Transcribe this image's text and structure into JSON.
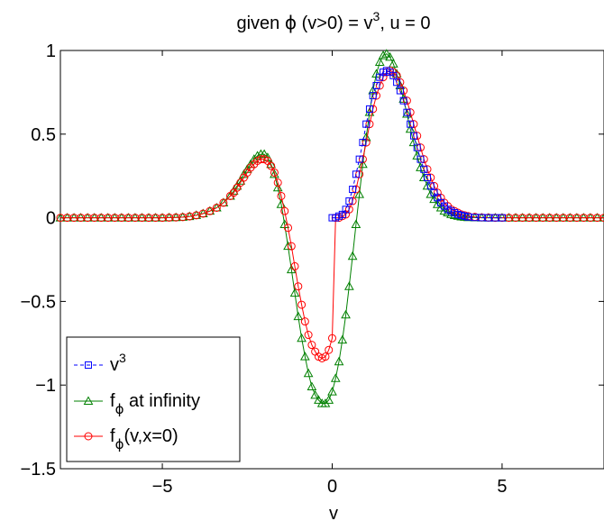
{
  "chart_data": {
    "type": "line",
    "title": {
      "prefix": "given ",
      "phi": "ϕ",
      "middle": " (v>0) = v",
      "sup": "3",
      "suffix": ", u = 0"
    },
    "xlabel": "v",
    "ylabel": "",
    "xlim": [
      -8,
      8
    ],
    "ylim": [
      -1.5,
      1
    ],
    "xticks": [
      -5,
      0,
      5
    ],
    "xtick_labels": [
      "−5",
      "0",
      "5"
    ],
    "yticks": [
      -1.5,
      -1,
      -0.5,
      0,
      0.5,
      1
    ],
    "ytick_labels": [
      "−1.5",
      "−1",
      "−0.5",
      "0",
      "0.5",
      "1"
    ],
    "grid": false,
    "legend_position": "bottom-left",
    "series": [
      {
        "name": "v3",
        "legend": {
          "base": "v",
          "sup": "3",
          "sub": "",
          "rest": ""
        },
        "color": "#0000ff",
        "marker": "square",
        "linestyle": "dashed",
        "x": [
          0.0,
          0.1,
          0.2,
          0.3,
          0.4,
          0.5,
          0.6,
          0.7,
          0.8,
          0.9,
          1.0,
          1.1,
          1.2,
          1.3,
          1.4,
          1.5,
          1.6,
          1.7,
          1.8,
          1.9,
          2.0,
          2.1,
          2.2,
          2.3,
          2.4,
          2.5,
          2.6,
          2.7,
          2.8,
          2.9,
          3.0,
          3.1,
          3.2,
          3.3,
          3.4,
          3.5,
          3.6,
          3.7,
          3.8,
          3.9,
          4.0,
          4.2,
          4.4,
          4.6,
          4.8,
          5.0
        ],
        "y": [
          0.0,
          0.0,
          0.01,
          0.02,
          0.05,
          0.1,
          0.17,
          0.26,
          0.35,
          0.45,
          0.56,
          0.65,
          0.73,
          0.79,
          0.84,
          0.87,
          0.88,
          0.87,
          0.85,
          0.81,
          0.76,
          0.7,
          0.63,
          0.56,
          0.49,
          0.42,
          0.35,
          0.29,
          0.24,
          0.19,
          0.15,
          0.12,
          0.09,
          0.07,
          0.05,
          0.04,
          0.03,
          0.02,
          0.015,
          0.01,
          0.005,
          0.002,
          0.001,
          0.0,
          0.0,
          0.0
        ]
      },
      {
        "name": "f_phi at infinity",
        "legend": {
          "base": "f",
          "sup": "",
          "sub": "ϕ",
          "rest": " at infinity"
        },
        "color": "#008000",
        "marker": "triangle",
        "linestyle": "solid",
        "x": [
          -8.0,
          -7.8,
          -7.6,
          -7.4,
          -7.2,
          -7.0,
          -6.8,
          -6.6,
          -6.4,
          -6.2,
          -6.0,
          -5.8,
          -5.6,
          -5.4,
          -5.2,
          -5.0,
          -4.8,
          -4.6,
          -4.4,
          -4.2,
          -4.0,
          -3.8,
          -3.6,
          -3.4,
          -3.2,
          -3.0,
          -2.9,
          -2.8,
          -2.7,
          -2.6,
          -2.5,
          -2.4,
          -2.3,
          -2.2,
          -2.1,
          -2.0,
          -1.9,
          -1.8,
          -1.7,
          -1.6,
          -1.5,
          -1.4,
          -1.3,
          -1.2,
          -1.1,
          -1.0,
          -0.9,
          -0.8,
          -0.7,
          -0.6,
          -0.5,
          -0.4,
          -0.3,
          -0.2,
          -0.1,
          0.0,
          0.1,
          0.2,
          0.3,
          0.4,
          0.5,
          0.6,
          0.7,
          0.8,
          0.9,
          1.0,
          1.1,
          1.2,
          1.3,
          1.4,
          1.5,
          1.6,
          1.7,
          1.8,
          1.9,
          2.0,
          2.1,
          2.2,
          2.3,
          2.4,
          2.5,
          2.6,
          2.7,
          2.8,
          2.9,
          3.0,
          3.1,
          3.2,
          3.3,
          3.4,
          3.5,
          3.6,
          3.7,
          3.8,
          3.9,
          4.0,
          4.2,
          4.4,
          4.6,
          4.8,
          5.0,
          5.2,
          5.4,
          5.6,
          5.8,
          6.0,
          6.2,
          6.4,
          6.6,
          6.8,
          7.0,
          7.2,
          7.4,
          7.6,
          7.8,
          8.0
        ],
        "y": [
          0.0,
          0.0,
          0.0,
          0.0,
          0.0,
          0.0,
          0.0,
          0.0,
          0.0,
          0.0,
          0.0,
          0.0,
          0.0,
          0.0,
          0.0,
          0.0,
          0.001,
          0.002,
          0.004,
          0.008,
          0.015,
          0.025,
          0.04,
          0.06,
          0.09,
          0.13,
          0.16,
          0.19,
          0.22,
          0.26,
          0.29,
          0.32,
          0.35,
          0.37,
          0.38,
          0.38,
          0.36,
          0.32,
          0.26,
          0.18,
          0.08,
          -0.04,
          -0.17,
          -0.31,
          -0.45,
          -0.59,
          -0.72,
          -0.83,
          -0.93,
          -1.01,
          -1.06,
          -1.09,
          -1.11,
          -1.11,
          -1.09,
          -1.04,
          -0.96,
          -0.86,
          -0.73,
          -0.58,
          -0.41,
          -0.23,
          -0.04,
          0.14,
          0.32,
          0.48,
          0.63,
          0.76,
          0.86,
          0.93,
          0.97,
          0.98,
          0.96,
          0.92,
          0.86,
          0.79,
          0.71,
          0.62,
          0.53,
          0.45,
          0.37,
          0.3,
          0.24,
          0.19,
          0.14,
          0.11,
          0.08,
          0.06,
          0.04,
          0.03,
          0.02,
          0.014,
          0.01,
          0.006,
          0.004,
          0.002,
          0.001,
          0.0,
          0.0,
          0.0,
          0.0,
          0.0,
          0.0,
          0.0,
          0.0,
          0.0,
          0.0,
          0.0,
          0.0,
          0.0,
          0.0,
          0.0,
          0.0,
          0.0,
          0.0,
          0.0
        ]
      },
      {
        "name": "f_phi(v,x=0)",
        "legend": {
          "base": "f",
          "sup": "",
          "sub": "ϕ",
          "rest": "(v,x=0)"
        },
        "color": "#ff0000",
        "marker": "circle",
        "linestyle": "solid",
        "x": [
          -8.0,
          -7.8,
          -7.6,
          -7.4,
          -7.2,
          -7.0,
          -6.8,
          -6.6,
          -6.4,
          -6.2,
          -6.0,
          -5.8,
          -5.6,
          -5.4,
          -5.2,
          -5.0,
          -4.8,
          -4.6,
          -4.4,
          -4.2,
          -4.0,
          -3.8,
          -3.6,
          -3.4,
          -3.2,
          -3.0,
          -2.9,
          -2.8,
          -2.7,
          -2.6,
          -2.5,
          -2.4,
          -2.3,
          -2.2,
          -2.1,
          -2.0,
          -1.9,
          -1.8,
          -1.7,
          -1.6,
          -1.5,
          -1.4,
          -1.3,
          -1.2,
          -1.1,
          -1.0,
          -0.9,
          -0.8,
          -0.7,
          -0.6,
          -0.5,
          -0.4,
          -0.3,
          -0.2,
          -0.1,
          0.0,
          0.1,
          0.2,
          0.3,
          0.4,
          0.5,
          0.6,
          0.7,
          0.8,
          0.9,
          1.0,
          1.1,
          1.2,
          1.3,
          1.4,
          1.5,
          1.6,
          1.7,
          1.8,
          1.9,
          2.0,
          2.1,
          2.2,
          2.3,
          2.4,
          2.5,
          2.6,
          2.7,
          2.8,
          2.9,
          3.0,
          3.1,
          3.2,
          3.3,
          3.4,
          3.5,
          3.6,
          3.7,
          3.8,
          3.9,
          4.0,
          4.2,
          4.4,
          4.6,
          4.8,
          5.0,
          5.2,
          5.4,
          5.6,
          5.8,
          6.0,
          6.2,
          6.4,
          6.6,
          6.8,
          7.0,
          7.2,
          7.4,
          7.6,
          7.8,
          8.0
        ],
        "y": [
          0.0,
          0.0,
          0.0,
          0.0,
          0.0,
          0.0,
          0.0,
          0.0,
          0.0,
          0.0,
          0.0,
          0.0,
          0.0,
          0.0,
          0.0,
          0.0,
          0.001,
          0.002,
          0.004,
          0.008,
          0.015,
          0.025,
          0.04,
          0.06,
          0.09,
          0.13,
          0.15,
          0.18,
          0.21,
          0.24,
          0.27,
          0.3,
          0.32,
          0.34,
          0.35,
          0.35,
          0.34,
          0.31,
          0.27,
          0.21,
          0.13,
          0.04,
          -0.06,
          -0.17,
          -0.29,
          -0.41,
          -0.52,
          -0.62,
          -0.7,
          -0.76,
          -0.8,
          -0.83,
          -0.84,
          -0.83,
          -0.79,
          -0.72,
          0.0,
          0.0,
          0.01,
          0.02,
          0.05,
          0.1,
          0.17,
          0.26,
          0.35,
          0.45,
          0.56,
          0.65,
          0.73,
          0.79,
          0.84,
          0.87,
          0.88,
          0.87,
          0.85,
          0.81,
          0.76,
          0.7,
          0.63,
          0.56,
          0.49,
          0.42,
          0.35,
          0.29,
          0.24,
          0.19,
          0.15,
          0.12,
          0.09,
          0.07,
          0.05,
          0.04,
          0.03,
          0.02,
          0.015,
          0.01,
          0.005,
          0.002,
          0.001,
          0.0,
          0.0,
          0.0,
          0.0,
          0.0,
          0.0,
          0.0,
          0.0,
          0.0,
          0.0,
          0.0,
          0.0,
          0.0,
          0.0,
          0.0,
          0.0,
          0.0
        ]
      }
    ]
  }
}
